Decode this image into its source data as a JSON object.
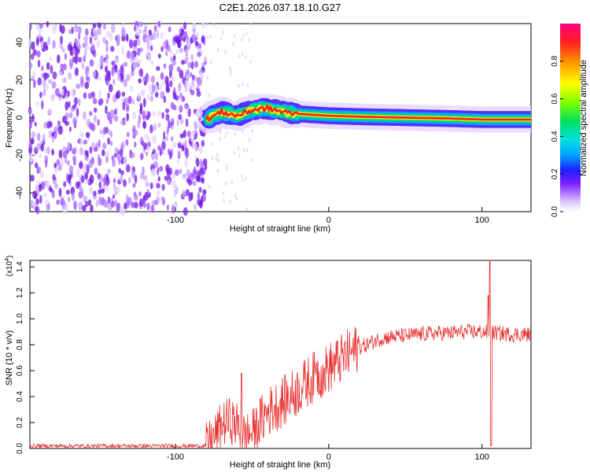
{
  "figure": {
    "title": "C2E1.2026.037.18.10.G27"
  },
  "colors": {
    "snr_line": "#e83030",
    "axis": "#000000",
    "background": "#ffffff"
  },
  "chart_data": [
    {
      "type": "heatmap",
      "name": "spectrogram",
      "title": "C2E1.2026.037.18.10.G27",
      "xlabel": "Height of straight line (km)",
      "ylabel": "Frequency (Hz)",
      "xlim": [
        -195,
        132
      ],
      "ylim": [
        -50,
        50
      ],
      "xticks": [
        -100,
        0,
        100
      ],
      "xtick_labels": [
        "-100",
        "0",
        "100"
      ],
      "yticks": [
        -40,
        -20,
        0,
        20,
        40
      ],
      "ytick_labels": [
        "-40",
        "-20",
        "0",
        "20",
        "40"
      ],
      "grid": false,
      "noise_region_km": [
        -195,
        -80
      ],
      "signal_centerline": [
        {
          "x": -80,
          "y": -1
        },
        {
          "x": -70,
          "y": 3
        },
        {
          "x": -60,
          "y": 1
        },
        {
          "x": -50,
          "y": 4
        },
        {
          "x": -40,
          "y": 5
        },
        {
          "x": -30,
          "y": 3
        },
        {
          "x": -20,
          "y": 2
        },
        {
          "x": -10,
          "y": 1.5
        },
        {
          "x": 0,
          "y": 1
        },
        {
          "x": 20,
          "y": 0.5
        },
        {
          "x": 50,
          "y": 0
        },
        {
          "x": 80,
          "y": -0.5
        },
        {
          "x": 100,
          "y": -1
        },
        {
          "x": 132,
          "y": -1
        }
      ],
      "colorbar": {
        "label": "Normalized spectral amplitude",
        "range": [
          0,
          1
        ],
        "ticks": [
          0.0,
          0.2,
          0.4,
          0.6,
          0.8
        ],
        "tick_labels": [
          "0.0",
          "0.2",
          "0.4",
          "0.6",
          "0.8"
        ],
        "colormap": "rainbow"
      }
    },
    {
      "type": "line",
      "name": "snr",
      "xlabel": "Height of straight line (km)",
      "ylabel": "SNR (10 * v/v)",
      "y_multiplier": "(x10",
      "y_multiplier_exp": "4",
      "y_multiplier_close": ")",
      "xlim": [
        -195,
        132
      ],
      "ylim": [
        0,
        1.45
      ],
      "xticks": [
        -100,
        0,
        100
      ],
      "xtick_labels": [
        "-100",
        "0",
        "100"
      ],
      "yticks": [
        0.0,
        0.2,
        0.4,
        0.6,
        0.8,
        1.0,
        1.2,
        1.4
      ],
      "ytick_labels": [
        "0.0",
        "0.2",
        "0.4",
        "0.6",
        "0.8",
        "1.0",
        "1.2",
        "1.4"
      ],
      "grid": false,
      "series": [
        {
          "name": "SNR",
          "envelope": [
            {
              "x": -195,
              "y": 0.02
            },
            {
              "x": -80,
              "y": 0.02
            },
            {
              "x": -75,
              "y": 0.08
            },
            {
              "x": -70,
              "y": 0.18
            },
            {
              "x": -65,
              "y": 0.22
            },
            {
              "x": -60,
              "y": 0.18
            },
            {
              "x": -55,
              "y": 0.1
            },
            {
              "x": -50,
              "y": 0.12
            },
            {
              "x": -45,
              "y": 0.2
            },
            {
              "x": -40,
              "y": 0.28
            },
            {
              "x": -35,
              "y": 0.32
            },
            {
              "x": -30,
              "y": 0.36
            },
            {
              "x": -25,
              "y": 0.4
            },
            {
              "x": -20,
              "y": 0.45
            },
            {
              "x": -15,
              "y": 0.5
            },
            {
              "x": -10,
              "y": 0.55
            },
            {
              "x": -5,
              "y": 0.58
            },
            {
              "x": 0,
              "y": 0.62
            },
            {
              "x": 5,
              "y": 0.66
            },
            {
              "x": 10,
              "y": 0.7
            },
            {
              "x": 15,
              "y": 0.74
            },
            {
              "x": 20,
              "y": 0.78
            },
            {
              "x": 25,
              "y": 0.8
            },
            {
              "x": 30,
              "y": 0.83
            },
            {
              "x": 35,
              "y": 0.85
            },
            {
              "x": 40,
              "y": 0.86
            },
            {
              "x": 50,
              "y": 0.87
            },
            {
              "x": 60,
              "y": 0.88
            },
            {
              "x": 70,
              "y": 0.89
            },
            {
              "x": 80,
              "y": 0.89
            },
            {
              "x": 90,
              "y": 0.9
            },
            {
              "x": 100,
              "y": 0.9
            },
            {
              "x": 110,
              "y": 0.89
            },
            {
              "x": 120,
              "y": 0.88
            },
            {
              "x": 132,
              "y": 0.88
            }
          ],
          "peaks": [
            {
              "x": -57,
              "y": 0.58
            },
            {
              "x": -8,
              "y": 0.66
            },
            {
              "x": -3,
              "y": 0.62
            },
            {
              "x": 105,
              "y": 1.45
            },
            {
              "x": 104,
              "y": 1.18
            }
          ],
          "dips": [
            {
              "x": 106,
              "y": 0.02
            }
          ]
        }
      ]
    }
  ]
}
